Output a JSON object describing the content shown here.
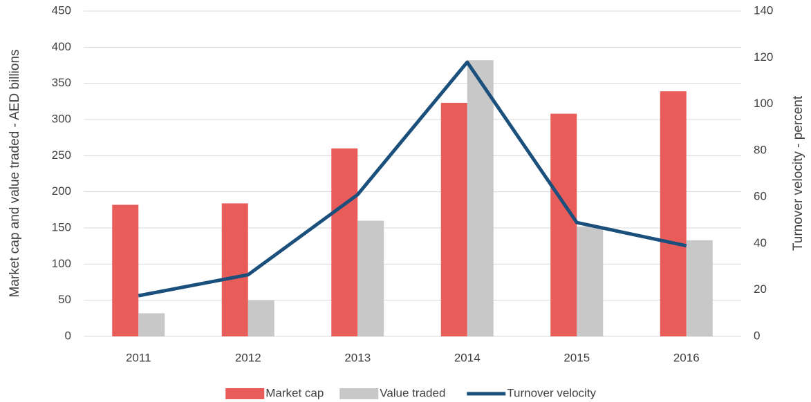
{
  "chart_data": {
    "type": "bar",
    "categories": [
      "2011",
      "2012",
      "2013",
      "2014",
      "2015",
      "2016"
    ],
    "series": [
      {
        "name": "Market cap",
        "color": "#e85c5a",
        "values": [
          182,
          184,
          260,
          323,
          308,
          339
        ]
      },
      {
        "name": "Value traded",
        "color": "#c8c8c8",
        "values": [
          32,
          50,
          160,
          382,
          152,
          133
        ]
      },
      {
        "name": "Turnover velocity",
        "color": "#1b4f7c",
        "type": "line",
        "axis": "y2",
        "values": [
          17.5,
          26.5,
          61,
          118,
          49,
          39
        ]
      }
    ],
    "ylabel": "Market cap and value traded - AED billions",
    "y2label": "Turnover velocity - percent",
    "ylim": [
      0,
      450
    ],
    "yticks": [
      0,
      50,
      100,
      150,
      200,
      250,
      300,
      350,
      400,
      450
    ],
    "y2lim": [
      0,
      140
    ],
    "y2ticks": [
      0,
      20,
      40,
      60,
      80,
      100,
      120,
      140
    ],
    "grid": true,
    "legend": "bottom"
  }
}
